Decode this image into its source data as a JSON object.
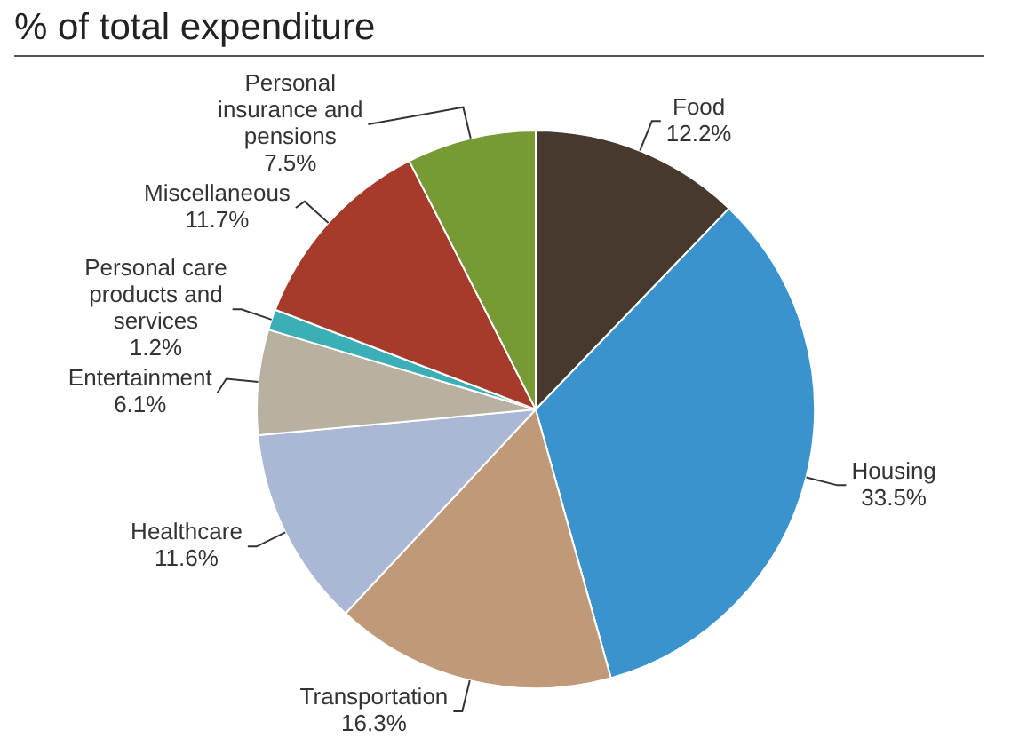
{
  "chart_data": {
    "type": "pie",
    "title": "% of total expenditure",
    "categories": [
      "Food",
      "Housing",
      "Transportation",
      "Healthcare",
      "Entertainment",
      "Personal care products and services",
      "Miscellaneous",
      "Personal insurance and pensions"
    ],
    "values": [
      12.2,
      33.5,
      16.3,
      11.6,
      6.1,
      1.2,
      11.7,
      7.5
    ],
    "value_labels": [
      "12.2%",
      "33.5%",
      "16.3%",
      "11.6%",
      "6.1%",
      "1.2%",
      "11.7%",
      "7.5%"
    ],
    "colors": [
      "#47392e",
      "#3a93cc",
      "#c09a78",
      "#aab8d6",
      "#b8b0a0",
      "#3aafb5",
      "#a63a2b",
      "#789a35"
    ],
    "legend": false
  }
}
